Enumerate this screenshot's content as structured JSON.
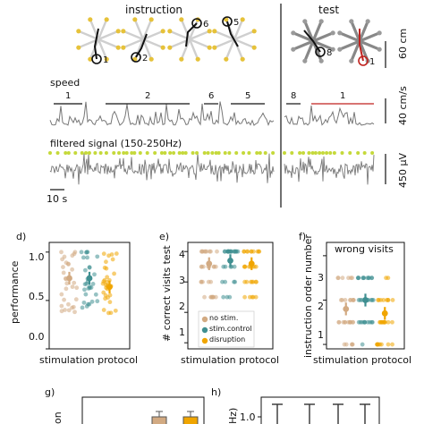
{
  "panel_top": {
    "instruction_title": "instruction",
    "test_title": "test",
    "maze_numbers": [
      "1",
      "2",
      "6",
      "5",
      "8",
      "1"
    ],
    "scale_60cm": "60 cm",
    "speed_label": "speed",
    "speed_segments": [
      "1",
      "2",
      "6",
      "5",
      "8",
      "1"
    ],
    "scale_40cms": "40 cm/s",
    "filtered_label": "filtered signal (150-250Hz)",
    "scale_450uv": "450 μV",
    "scale_10s": "10 s"
  },
  "panel_letters": {
    "d": "d)",
    "e": "e)",
    "f": "f)",
    "g": "g)",
    "h": "h)"
  },
  "colors": {
    "no_stim": "#d2aa82",
    "stim_control": "#3f8f91",
    "disruption": "#f0a500",
    "arm_yellow": "#e6c23a",
    "test_red": "#c0221e",
    "trace_gray": "#777777",
    "ripple_dot": "#c5d93a"
  },
  "chart_data": [
    {
      "type": "scatter",
      "panel": "d",
      "ylabel": "performance",
      "xlabel": "stimulation protocol",
      "yticks": [
        "0.0",
        "0.5",
        "1.0"
      ],
      "ylim": [
        0,
        1.1
      ],
      "groups": [
        "no stim.",
        "stim.control",
        "disruption"
      ],
      "medians": [
        0.73,
        0.73,
        0.64
      ]
    },
    {
      "type": "scatter",
      "panel": "e",
      "ylabel": "# correct visits test",
      "xlabel": "stimulation protocol",
      "yticks": [
        "1",
        "2",
        "3",
        "4"
      ],
      "ylim": [
        0.8,
        4.3
      ],
      "legend": [
        "no stim.",
        "stim.control",
        "disruption"
      ],
      "medians": [
        3.6,
        3.7,
        3.6
      ]
    },
    {
      "type": "scatter",
      "panel": "f",
      "title": "wrong visits",
      "ylabel": "instruction order number",
      "xlabel": "stimulation protocol",
      "yticks": [
        "1",
        "2",
        "3"
      ],
      "ylim": [
        0.9,
        3.3
      ],
      "medians": [
        1.8,
        2.0,
        1.7
      ]
    },
    {
      "type": "bar",
      "panel": "g",
      "ylabel": "on"
    },
    {
      "type": "bar",
      "panel": "h",
      "ylabel": "Hz)",
      "yticks": [
        "1.0"
      ]
    }
  ]
}
